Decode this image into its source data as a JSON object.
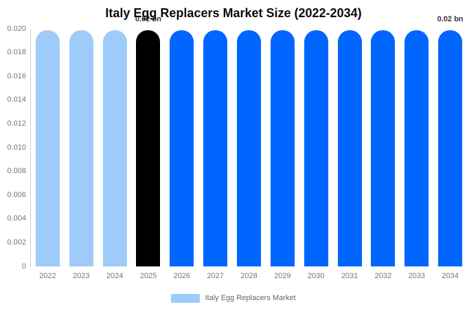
{
  "title": "Italy Egg Replacers Market Size (2022-2034)",
  "colors": {
    "historical_bar": "#9FCBFA",
    "base_year_bar": "#000000",
    "forecast_bar": "#0066FF",
    "axis_line": "#cccccc",
    "tick_text": "#757575",
    "legend_text": "#666666",
    "data_label_text": "#333333"
  },
  "chart_data": {
    "type": "bar",
    "title": "Italy Egg Replacers Market Size (2022-2034)",
    "xlabel": "",
    "ylabel": "",
    "ylim": [
      0,
      0.02
    ],
    "grid": false,
    "categories": [
      "2022",
      "2023",
      "2024",
      "2025",
      "2026",
      "2027",
      "2028",
      "2029",
      "2030",
      "2031",
      "2032",
      "2033",
      "2034"
    ],
    "values": [
      0.02,
      0.02,
      0.02,
      0.02,
      0.02,
      0.02,
      0.02,
      0.02,
      0.02,
      0.02,
      0.02,
      0.02,
      0.02
    ],
    "bar_colors": [
      "#9FCBFA",
      "#9FCBFA",
      "#9FCBFA",
      "#000000",
      "#0066FF",
      "#0066FF",
      "#0066FF",
      "#0066FF",
      "#0066FF",
      "#0066FF",
      "#0066FF",
      "#0066FF",
      "#0066FF"
    ],
    "unit": "bn",
    "data_labels": [
      {
        "index": 3,
        "text": "0.02 bn"
      },
      {
        "index": 12,
        "text": "0.02 bn"
      }
    ],
    "yticks": [
      "0.020",
      "0.018",
      "0.016",
      "0.014",
      "0.012",
      "0.010",
      "0.008",
      "0.006",
      "0.004",
      "0.002",
      "0"
    ],
    "legend": {
      "position": "bottom",
      "entries": [
        {
          "label": "Italy Egg Replacers Market",
          "color": "#9FCBFA"
        }
      ]
    }
  }
}
